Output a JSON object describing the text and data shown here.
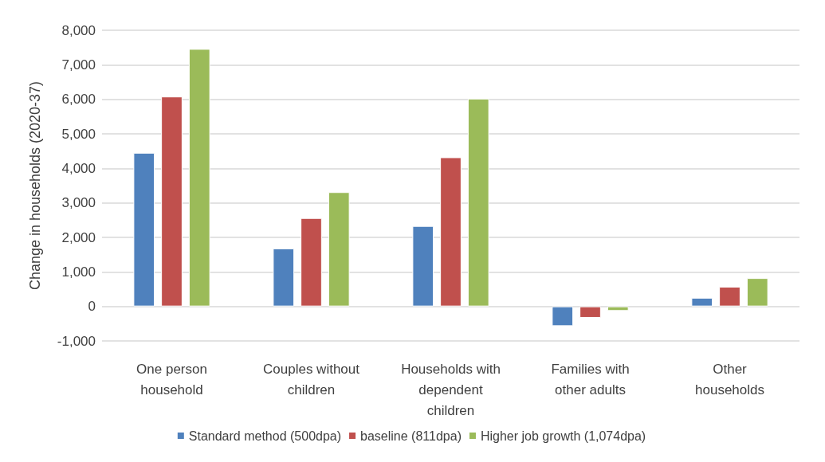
{
  "chart_data": {
    "type": "bar",
    "ylabel": "Change in households (2020-37)",
    "categories": [
      "One person household",
      "Couples without children",
      "Households with dependent children",
      "Families with other adults",
      "Other households"
    ],
    "series": [
      {
        "name": "Standard method (500dpa)",
        "color": "#4f81bd",
        "values": [
          4450,
          1680,
          2330,
          -570,
          250
        ]
      },
      {
        "name": "baseline (811dpa)",
        "color": "#c0504d",
        "values": [
          6080,
          2560,
          4320,
          -330,
          570
        ]
      },
      {
        "name": "Higher job growth (1,074dpa)",
        "color": "#9bbb59",
        "values": [
          7460,
          3310,
          6020,
          -130,
          820
        ]
      }
    ],
    "ylim": [
      -1000,
      8000
    ],
    "yticks": [
      {
        "value": -1000,
        "label": "-1,000"
      },
      0,
      {
        "value": 1000,
        "label": "1,000"
      },
      {
        "value": 2000,
        "label": "2,000"
      },
      {
        "value": 3000,
        "label": "3,000"
      },
      {
        "value": 4000,
        "label": "4,000"
      },
      {
        "value": 5000,
        "label": "5,000"
      },
      {
        "value": 6000,
        "label": "6,000"
      },
      {
        "value": 7000,
        "label": "7,000"
      },
      {
        "value": 8000,
        "label": "8,000"
      }
    ],
    "grid": "y",
    "legend": "bottom"
  }
}
